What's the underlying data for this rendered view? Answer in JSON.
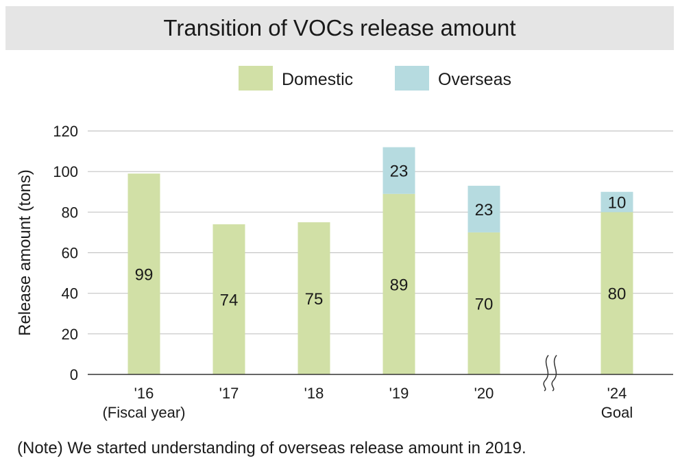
{
  "chart_data": {
    "type": "bar",
    "stacked": true,
    "title": "Transition of VOCs release amount",
    "ylabel": "Release amount (tons)",
    "ylim": [
      0,
      120
    ],
    "yticks": [
      0,
      20,
      40,
      60,
      80,
      100,
      120
    ],
    "grid": true,
    "legend_position": "top",
    "categories": [
      "'16",
      "'17",
      "'18",
      "'19",
      "'20",
      "'24"
    ],
    "category_sublabels": [
      "(Fiscal year)",
      "",
      "",
      "",
      "",
      "Goal"
    ],
    "axis_break_before_index": 5,
    "series": [
      {
        "name": "Domestic",
        "color": "#d1e0a6",
        "values": [
          99,
          74,
          75,
          89,
          70,
          80
        ]
      },
      {
        "name": "Overseas",
        "color": "#b6dbe0",
        "values": [
          null,
          null,
          null,
          23,
          23,
          10
        ]
      }
    ]
  },
  "note": "(Note) We started understanding of overseas release amount in 2019."
}
